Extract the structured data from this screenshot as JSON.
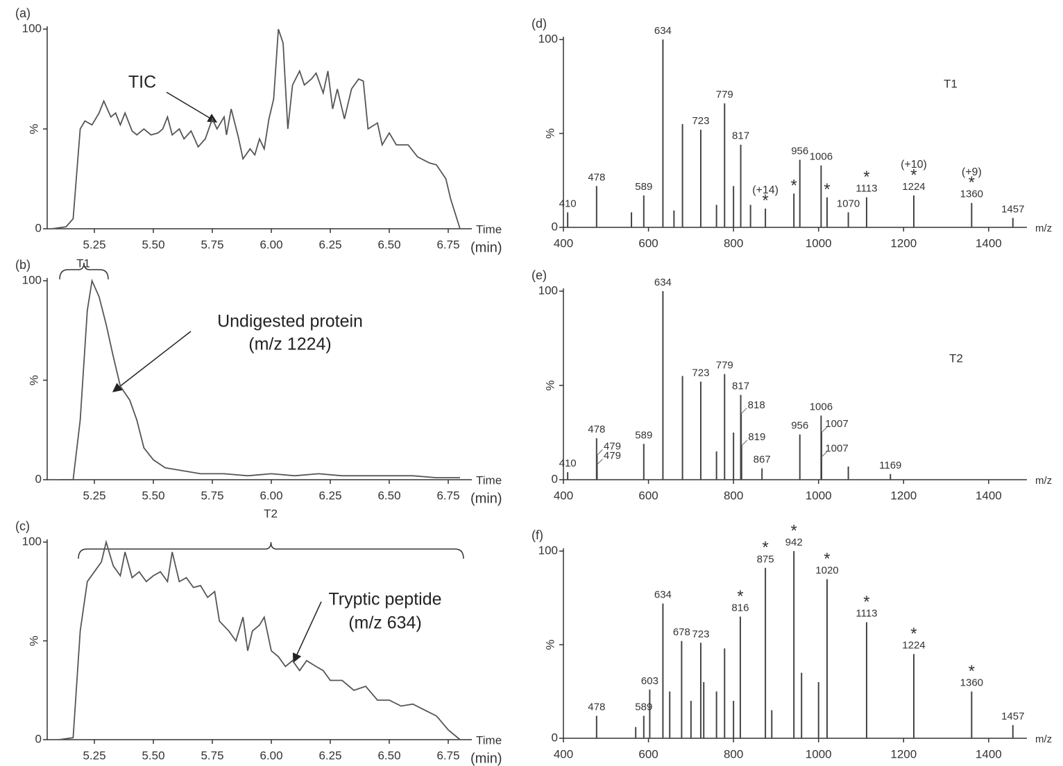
{
  "chart_data": [
    {
      "type": "line",
      "panel": "(a)",
      "x_label": "Time",
      "x_unit": "(min)",
      "color": "#555555",
      "xlim": [
        5.05,
        6.85
      ],
      "ylim": [
        0,
        100
      ],
      "xticks": [
        5.25,
        {
          "value": 5.5,
          "label": "5.50"
        },
        5.75,
        {
          "value": 6,
          "label": "6.00"
        },
        6.25,
        {
          "value": 6.5,
          "label": "6.50"
        },
        6.75
      ],
      "yticks": [
        0,
        {
          "value": 50,
          "label": "%"
        },
        100
      ],
      "annotations": [
        "TIC"
      ],
      "x": [
        5.07,
        5.13,
        5.16,
        5.19,
        5.21,
        5.24,
        5.27,
        5.29,
        5.32,
        5.34,
        5.36,
        5.38,
        5.41,
        5.43,
        5.46,
        5.49,
        5.52,
        5.54,
        5.56,
        5.58,
        5.61,
        5.63,
        5.66,
        5.69,
        5.72,
        5.75,
        5.77,
        5.8,
        5.81,
        5.83,
        5.86,
        5.88,
        5.91,
        5.93,
        5.95,
        5.97,
        5.99,
        6.01,
        6.03,
        6.05,
        6.07,
        6.09,
        6.12,
        6.14,
        6.17,
        6.19,
        6.22,
        6.24,
        6.26,
        6.28,
        6.31,
        6.34,
        6.37,
        6.39,
        6.41,
        6.45,
        6.47,
        6.5,
        6.53,
        6.58,
        6.62,
        6.67,
        6.7,
        6.74,
        6.76,
        6.8
      ],
      "values": [
        0,
        1,
        5,
        50,
        54,
        52,
        58,
        64,
        56,
        58,
        52,
        58,
        49,
        47,
        50,
        47,
        48,
        50,
        56,
        47,
        50,
        45,
        49,
        41,
        45,
        55,
        50,
        56,
        47,
        60,
        46,
        35,
        40,
        37,
        45,
        40,
        55,
        65,
        100,
        93,
        50,
        72,
        79,
        72,
        75,
        78,
        68,
        79,
        60,
        70,
        55,
        70,
        75,
        74,
        50,
        53,
        42,
        48,
        42,
        42,
        36,
        33,
        32,
        25,
        15,
        0
      ]
    },
    {
      "type": "line",
      "panel": "(b)",
      "x_label": "Time",
      "x_unit": "(min)",
      "color": "#555555",
      "xlim": [
        5.05,
        6.85
      ],
      "ylim": [
        0,
        100
      ],
      "xticks": [
        5.25,
        {
          "value": 5.5,
          "label": "5.50"
        },
        5.75,
        {
          "value": 6,
          "label": "6.00"
        },
        6.25,
        {
          "value": 6.5,
          "label": "6.50"
        },
        6.75
      ],
      "yticks": [
        0,
        {
          "value": 50,
          "label": "%"
        },
        100
      ],
      "bracket_label": "T1",
      "annotations": [
        "Undigested protein",
        "(m/z 1224)"
      ],
      "x": [
        5.1,
        5.16,
        5.19,
        5.22,
        5.24,
        5.27,
        5.3,
        5.33,
        5.36,
        5.4,
        5.43,
        5.46,
        5.5,
        5.55,
        5.6,
        5.7,
        5.8,
        5.9,
        6.0,
        6.1,
        6.2,
        6.3,
        6.4,
        6.5,
        6.6,
        6.7,
        6.8
      ],
      "values": [
        0,
        0,
        30,
        85,
        100,
        92,
        78,
        62,
        47,
        40,
        30,
        16,
        10,
        6,
        5,
        3,
        3,
        2,
        3,
        2,
        3,
        2,
        2,
        2,
        2,
        1,
        1
      ]
    },
    {
      "type": "line",
      "panel": "(c)",
      "x_label": "Time",
      "x_unit": "(min)",
      "color": "#555555",
      "xlim": [
        5.05,
        6.85
      ],
      "ylim": [
        0,
        100
      ],
      "xticks": [
        5.25,
        {
          "value": 5.5,
          "label": "5.50"
        },
        5.75,
        {
          "value": 6,
          "label": "6.00"
        },
        6.25,
        {
          "value": 6.5,
          "label": "6.50"
        },
        6.75
      ],
      "yticks": [
        0,
        {
          "value": 50,
          "label": "%"
        },
        100
      ],
      "bracket_label": "T2",
      "annotations": [
        "Tryptic peptide",
        "(m/z 634)"
      ],
      "x": [
        5.1,
        5.16,
        5.19,
        5.22,
        5.25,
        5.28,
        5.3,
        5.33,
        5.36,
        5.38,
        5.41,
        5.44,
        5.47,
        5.5,
        5.53,
        5.56,
        5.58,
        5.61,
        5.64,
        5.67,
        5.7,
        5.73,
        5.76,
        5.78,
        5.82,
        5.85,
        5.88,
        5.9,
        5.92,
        5.95,
        5.97,
        6.0,
        6.03,
        6.06,
        6.09,
        6.12,
        6.15,
        6.19,
        6.22,
        6.25,
        6.3,
        6.35,
        6.4,
        6.45,
        6.5,
        6.55,
        6.6,
        6.65,
        6.7,
        6.75,
        6.8
      ],
      "values": [
        0,
        1,
        55,
        80,
        85,
        90,
        100,
        88,
        83,
        95,
        82,
        85,
        80,
        83,
        85,
        80,
        95,
        80,
        82,
        77,
        78,
        72,
        75,
        60,
        55,
        50,
        62,
        45,
        55,
        58,
        62,
        45,
        42,
        37,
        40,
        35,
        40,
        37,
        35,
        30,
        30,
        25,
        27,
        20,
        20,
        17,
        18,
        15,
        12,
        5,
        0
      ]
    },
    {
      "type": "stick",
      "panel": "(d)",
      "x_label": "m/z",
      "color": "#444444",
      "xlim": [
        400,
        1490
      ],
      "ylim": [
        0,
        100
      ],
      "xticks": [
        400,
        600,
        800,
        1000,
        1200,
        1400
      ],
      "yticks": [
        0,
        {
          "value": 50,
          "label": "%"
        },
        100
      ],
      "annotations": [
        "T1"
      ],
      "x": [
        410,
        478,
        560,
        589,
        634,
        660,
        680,
        723,
        760,
        779,
        800,
        817,
        840,
        875,
        942,
        956,
        1006,
        1020,
        1070,
        1113,
        1224,
        1360,
        1457
      ],
      "values": [
        8,
        22,
        8,
        17,
        100,
        9,
        55,
        52,
        12,
        66,
        22,
        44,
        12,
        10,
        18,
        36,
        33,
        16,
        8,
        16,
        17,
        13,
        5
      ],
      "peak_labels": [
        "410",
        "478",
        null,
        "589",
        "634",
        null,
        null,
        "723",
        null,
        "779",
        null,
        "817",
        null,
        null,
        null,
        "956",
        "1006",
        null,
        "1070",
        "1113",
        "1224",
        "1360",
        "1457"
      ],
      "notes": [
        null,
        null,
        null,
        null,
        null,
        null,
        null,
        null,
        null,
        null,
        null,
        null,
        null,
        [
          "(+14)",
          "*"
        ],
        [
          "*"
        ],
        null,
        null,
        [
          "*"
        ],
        null,
        [
          "*"
        ],
        [
          "(+10)",
          "*"
        ],
        [
          "(+9)",
          "*"
        ],
        null
      ]
    },
    {
      "type": "stick",
      "panel": "(e)",
      "x_label": "m/z",
      "color": "#444444",
      "xlim": [
        400,
        1490
      ],
      "ylim": [
        0,
        100
      ],
      "xticks": [
        400,
        600,
        800,
        1000,
        1200,
        1400
      ],
      "yticks": [
        0,
        {
          "value": 50,
          "label": "%"
        },
        100
      ],
      "annotations": [
        "T2"
      ],
      "x": [
        410,
        478,
        479,
        479,
        589,
        634,
        680,
        723,
        760,
        779,
        800,
        817,
        818,
        819,
        867,
        956,
        1006,
        1007,
        1007,
        1070,
        1169
      ],
      "values": [
        4,
        22,
        13,
        8,
        19,
        100,
        55,
        52,
        15,
        56,
        25,
        45,
        35,
        18,
        6,
        24,
        34,
        25,
        12,
        7,
        3
      ],
      "peak_labels": [
        "410",
        "478",
        "479",
        "479",
        "589",
        "634",
        null,
        "723",
        null,
        "779",
        null,
        "817",
        "818",
        "819",
        "867",
        "956",
        "1006",
        "1007",
        "1007",
        null,
        "1169"
      ],
      "notes": [
        null,
        null,
        null,
        null,
        null,
        null,
        null,
        null,
        null,
        null,
        null,
        null,
        null,
        null,
        null,
        null,
        null,
        null,
        null,
        null,
        null
      ]
    },
    {
      "type": "stick",
      "panel": "(f)",
      "x_label": "m/z",
      "color": "#444444",
      "xlim": [
        400,
        1490
      ],
      "ylim": [
        0,
        100
      ],
      "xticks": [
        400,
        600,
        800,
        1000,
        1200,
        1400
      ],
      "yticks": [
        0,
        {
          "value": 50,
          "label": "%"
        },
        100
      ],
      "x": [
        478,
        570,
        589,
        603,
        634,
        650,
        678,
        700,
        723,
        730,
        760,
        779,
        800,
        816,
        875,
        890,
        942,
        960,
        1000,
        1020,
        1113,
        1224,
        1360,
        1457
      ],
      "values": [
        12,
        6,
        12,
        26,
        72,
        25,
        52,
        20,
        51,
        30,
        25,
        48,
        20,
        65,
        91,
        15,
        100,
        35,
        30,
        85,
        62,
        45,
        25,
        7
      ],
      "peak_labels": [
        "478",
        null,
        "589",
        "603",
        "634",
        null,
        "678",
        null,
        "723",
        null,
        null,
        null,
        null,
        "816",
        "875",
        null,
        "942",
        null,
        null,
        "1020",
        "1113",
        "1224",
        "1360",
        "1457"
      ],
      "notes": [
        null,
        null,
        null,
        null,
        null,
        null,
        null,
        null,
        null,
        null,
        null,
        null,
        null,
        [
          "*"
        ],
        [
          "*"
        ],
        null,
        [
          "*"
        ],
        null,
        null,
        [
          "*"
        ],
        [
          "*"
        ],
        [
          "*"
        ],
        [
          "*"
        ],
        null
      ]
    }
  ]
}
